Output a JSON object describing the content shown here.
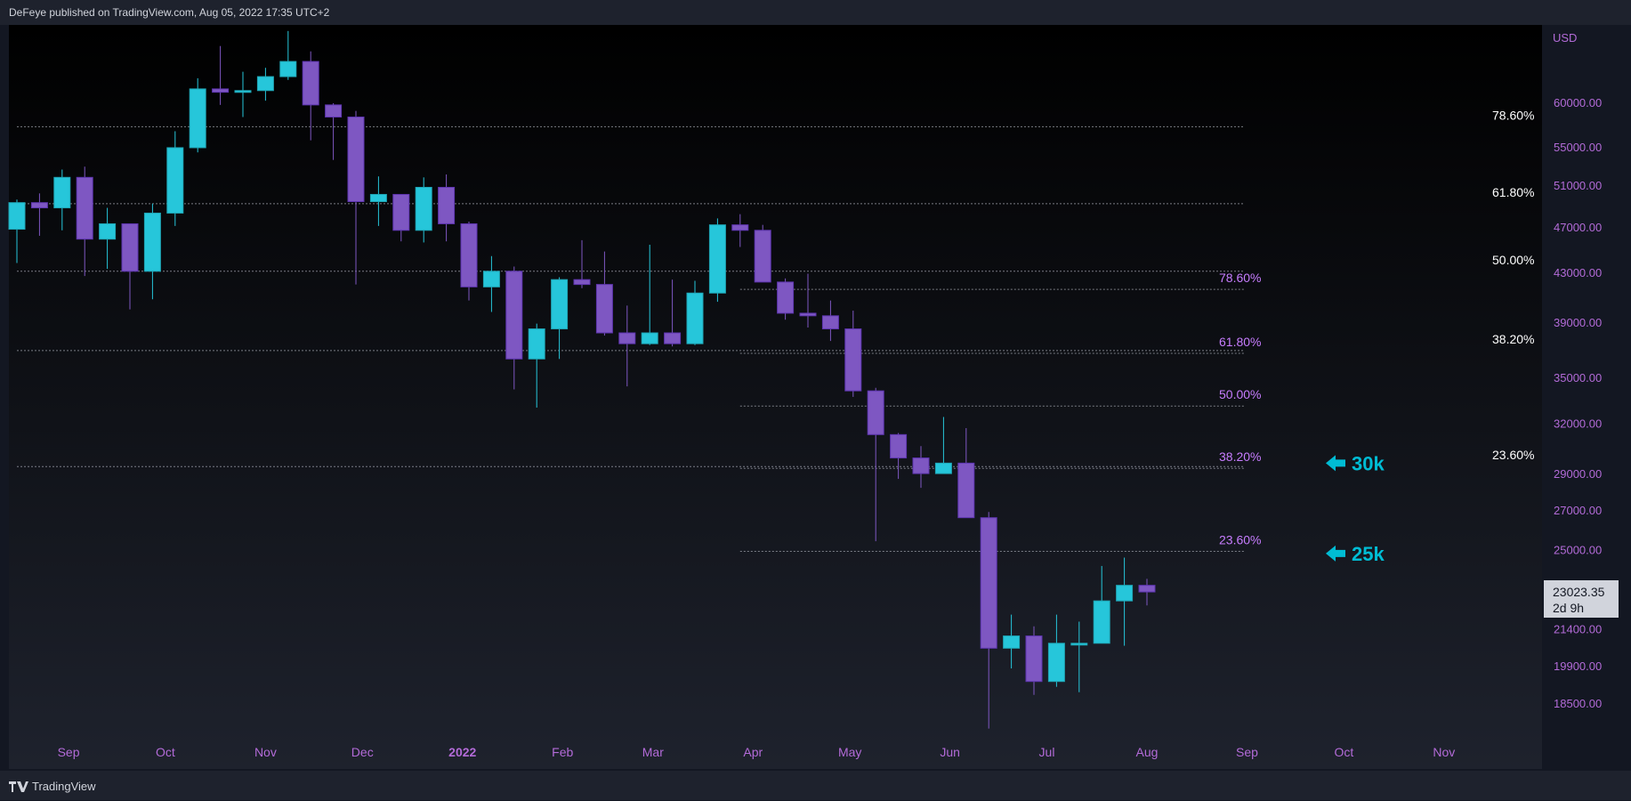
{
  "header": {
    "text": "DeFeye published on TradingView.com, Aug 05, 2022 17:35 UTC+2"
  },
  "footer": {
    "brand": "TradingView"
  },
  "colors": {
    "up": "#26c6da",
    "down": "#7e57c2",
    "axis_text": "#b36bd8",
    "fib_big": "#ffffff",
    "fib_small": "#c77dff",
    "annotation": "#00bcd4",
    "bg_top": "#000000",
    "bg_bottom": "#1e222d"
  },
  "chart_data": {
    "type": "candlestick",
    "title": "",
    "currency_label": "USD",
    "y_ticks": [
      "60000.00",
      "55000.00",
      "51000.00",
      "47000.00",
      "43000.00",
      "39000.00",
      "35000.00",
      "32000.00",
      "29000.00",
      "27000.00",
      "25000.00",
      "21400.00",
      "19900.00",
      "18500.00"
    ],
    "x_ticks": [
      {
        "label": "Sep",
        "date": "2021-09-01"
      },
      {
        "label": "Oct",
        "date": "2021-10-01"
      },
      {
        "label": "Nov",
        "date": "2021-11-01"
      },
      {
        "label": "Dec",
        "date": "2021-12-01"
      },
      {
        "label": "2022",
        "date": "2022-01-01",
        "bold": true
      },
      {
        "label": "Feb",
        "date": "2022-02-01"
      },
      {
        "label": "Mar",
        "date": "2022-03-01"
      },
      {
        "label": "Apr",
        "date": "2022-04-01"
      },
      {
        "label": "May",
        "date": "2022-05-01"
      },
      {
        "label": "Jun",
        "date": "2022-06-01"
      },
      {
        "label": "Jul",
        "date": "2022-07-01"
      },
      {
        "label": "Aug",
        "date": "2022-08-01"
      },
      {
        "label": "Sep",
        "date": "2022-09-01"
      },
      {
        "label": "Oct",
        "date": "2022-10-01"
      },
      {
        "label": "Nov",
        "date": "2022-11-01"
      }
    ],
    "candles": [
      {
        "date": "2021-08-16",
        "open": 46800,
        "high": 49600,
        "low": 43800,
        "close": 49300
      },
      {
        "date": "2021-08-23",
        "open": 49300,
        "high": 50200,
        "low": 46200,
        "close": 48800
      },
      {
        "date": "2021-08-30",
        "open": 48800,
        "high": 52600,
        "low": 46700,
        "close": 51800
      },
      {
        "date": "2021-09-06",
        "open": 51800,
        "high": 52900,
        "low": 42700,
        "close": 45900
      },
      {
        "date": "2021-09-13",
        "open": 45900,
        "high": 48800,
        "low": 43300,
        "close": 47300
      },
      {
        "date": "2021-09-20",
        "open": 47300,
        "high": 47300,
        "low": 40000,
        "close": 43100
      },
      {
        "date": "2021-09-27",
        "open": 43100,
        "high": 49200,
        "low": 40800,
        "close": 48300
      },
      {
        "date": "2021-10-04",
        "open": 48300,
        "high": 56700,
        "low": 47100,
        "close": 54900
      },
      {
        "date": "2021-10-11",
        "open": 54900,
        "high": 62900,
        "low": 54400,
        "close": 61600
      },
      {
        "date": "2021-10-18",
        "open": 61600,
        "high": 67000,
        "low": 59700,
        "close": 61200
      },
      {
        "date": "2021-10-25",
        "open": 61200,
        "high": 63700,
        "low": 58300,
        "close": 61400
      },
      {
        "date": "2021-11-01",
        "open": 61400,
        "high": 64200,
        "low": 60200,
        "close": 63100
      },
      {
        "date": "2021-11-08",
        "open": 63100,
        "high": 69000,
        "low": 62700,
        "close": 65000
      },
      {
        "date": "2021-11-15",
        "open": 65000,
        "high": 66300,
        "low": 55700,
        "close": 59700
      },
      {
        "date": "2021-11-22",
        "open": 59700,
        "high": 59900,
        "low": 53600,
        "close": 58300
      },
      {
        "date": "2021-11-29",
        "open": 58300,
        "high": 59000,
        "low": 42000,
        "close": 49400
      },
      {
        "date": "2021-12-06",
        "open": 49400,
        "high": 51900,
        "low": 47100,
        "close": 50100
      },
      {
        "date": "2021-12-13",
        "open": 50100,
        "high": 50100,
        "low": 45700,
        "close": 46700
      },
      {
        "date": "2021-12-20",
        "open": 46700,
        "high": 51800,
        "low": 45600,
        "close": 50800
      },
      {
        "date": "2021-12-27",
        "open": 50800,
        "high": 52100,
        "low": 45700,
        "close": 47300
      },
      {
        "date": "2022-01-03",
        "open": 47300,
        "high": 47500,
        "low": 40700,
        "close": 41800
      },
      {
        "date": "2022-01-10",
        "open": 41800,
        "high": 44400,
        "low": 39800,
        "close": 43100
      },
      {
        "date": "2022-01-17",
        "open": 43100,
        "high": 43500,
        "low": 34200,
        "close": 36300
      },
      {
        "date": "2022-01-24",
        "open": 36300,
        "high": 38900,
        "low": 33000,
        "close": 38500
      },
      {
        "date": "2022-01-31",
        "open": 38500,
        "high": 42600,
        "low": 36300,
        "close": 42400
      },
      {
        "date": "2022-02-07",
        "open": 42400,
        "high": 45800,
        "low": 41700,
        "close": 42000
      },
      {
        "date": "2022-02-14",
        "open": 42000,
        "high": 44800,
        "low": 38000,
        "close": 38200
      },
      {
        "date": "2022-02-21",
        "open": 38200,
        "high": 40300,
        "low": 34400,
        "close": 37400
      },
      {
        "date": "2022-02-28",
        "open": 37400,
        "high": 45400,
        "low": 37300,
        "close": 38200
      },
      {
        "date": "2022-03-07",
        "open": 38200,
        "high": 42400,
        "low": 37200,
        "close": 37400
      },
      {
        "date": "2022-03-14",
        "open": 37400,
        "high": 42300,
        "low": 37300,
        "close": 41300
      },
      {
        "date": "2022-03-21",
        "open": 41300,
        "high": 47800,
        "low": 40600,
        "close": 47200
      },
      {
        "date": "2022-03-28",
        "open": 47200,
        "high": 48200,
        "low": 45200,
        "close": 46700
      },
      {
        "date": "2022-04-04",
        "open": 46700,
        "high": 47200,
        "low": 42200,
        "close": 42200
      },
      {
        "date": "2022-04-11",
        "open": 42200,
        "high": 42500,
        "low": 39200,
        "close": 39700
      },
      {
        "date": "2022-04-18",
        "open": 39700,
        "high": 42900,
        "low": 38600,
        "close": 39500
      },
      {
        "date": "2022-04-25",
        "open": 39500,
        "high": 40700,
        "low": 37600,
        "close": 38500
      },
      {
        "date": "2022-05-02",
        "open": 38500,
        "high": 39900,
        "low": 33700,
        "close": 34100
      },
      {
        "date": "2022-05-09",
        "open": 34100,
        "high": 34300,
        "low": 25400,
        "close": 31300
      },
      {
        "date": "2022-05-16",
        "open": 31300,
        "high": 31400,
        "low": 28700,
        "close": 29900
      },
      {
        "date": "2022-05-23",
        "open": 29900,
        "high": 30600,
        "low": 28200,
        "close": 29000
      },
      {
        "date": "2022-05-30",
        "open": 29000,
        "high": 32400,
        "low": 29000,
        "close": 29600
      },
      {
        "date": "2022-06-06",
        "open": 29600,
        "high": 31700,
        "low": 26600,
        "close": 26600
      },
      {
        "date": "2022-06-13",
        "open": 26600,
        "high": 26900,
        "low": 17600,
        "close": 20600
      },
      {
        "date": "2022-06-20",
        "open": 20600,
        "high": 22000,
        "low": 19800,
        "close": 21100
      },
      {
        "date": "2022-06-27",
        "open": 21100,
        "high": 21500,
        "low": 18800,
        "close": 19300
      },
      {
        "date": "2022-07-04",
        "open": 19300,
        "high": 22000,
        "low": 19100,
        "close": 20800
      },
      {
        "date": "2022-07-11",
        "open": 20800,
        "high": 21700,
        "low": 18900,
        "close": 20800
      },
      {
        "date": "2022-07-18",
        "open": 20800,
        "high": 24200,
        "low": 20800,
        "close": 22600
      },
      {
        "date": "2022-07-25",
        "open": 22600,
        "high": 24600,
        "low": 20700,
        "close": 23300
      },
      {
        "date": "2022-08-01",
        "open": 23300,
        "high": 23600,
        "low": 22400,
        "close": 23000
      }
    ],
    "current_price": {
      "price_label": "23023.35",
      "countdown": "2d 9h",
      "value": 23023.35
    },
    "fib_big": {
      "start_date": "2021-08-16",
      "end_date": "2022-08-31",
      "levels": [
        {
          "label": "78.60%",
          "price": 57200
        },
        {
          "label": "61.80%",
          "price": 49200
        },
        {
          "label": "50.00%",
          "price": 43100
        },
        {
          "label": "38.20%",
          "price": 36900
        },
        {
          "label": "23.60%",
          "price": 29400
        }
      ]
    },
    "fib_small": {
      "start_date": "2022-03-28",
      "end_date": "2022-08-31",
      "levels": [
        {
          "label": "78.60%",
          "price": 41600
        },
        {
          "label": "61.80%",
          "price": 36700
        },
        {
          "label": "50.00%",
          "price": 33100
        },
        {
          "label": "38.20%",
          "price": 29300
        },
        {
          "label": "23.60%",
          "price": 24900
        }
      ]
    },
    "annotations": [
      {
        "label": "30k",
        "price": 29600
      },
      {
        "label": "25k",
        "price": 24800
      }
    ]
  }
}
